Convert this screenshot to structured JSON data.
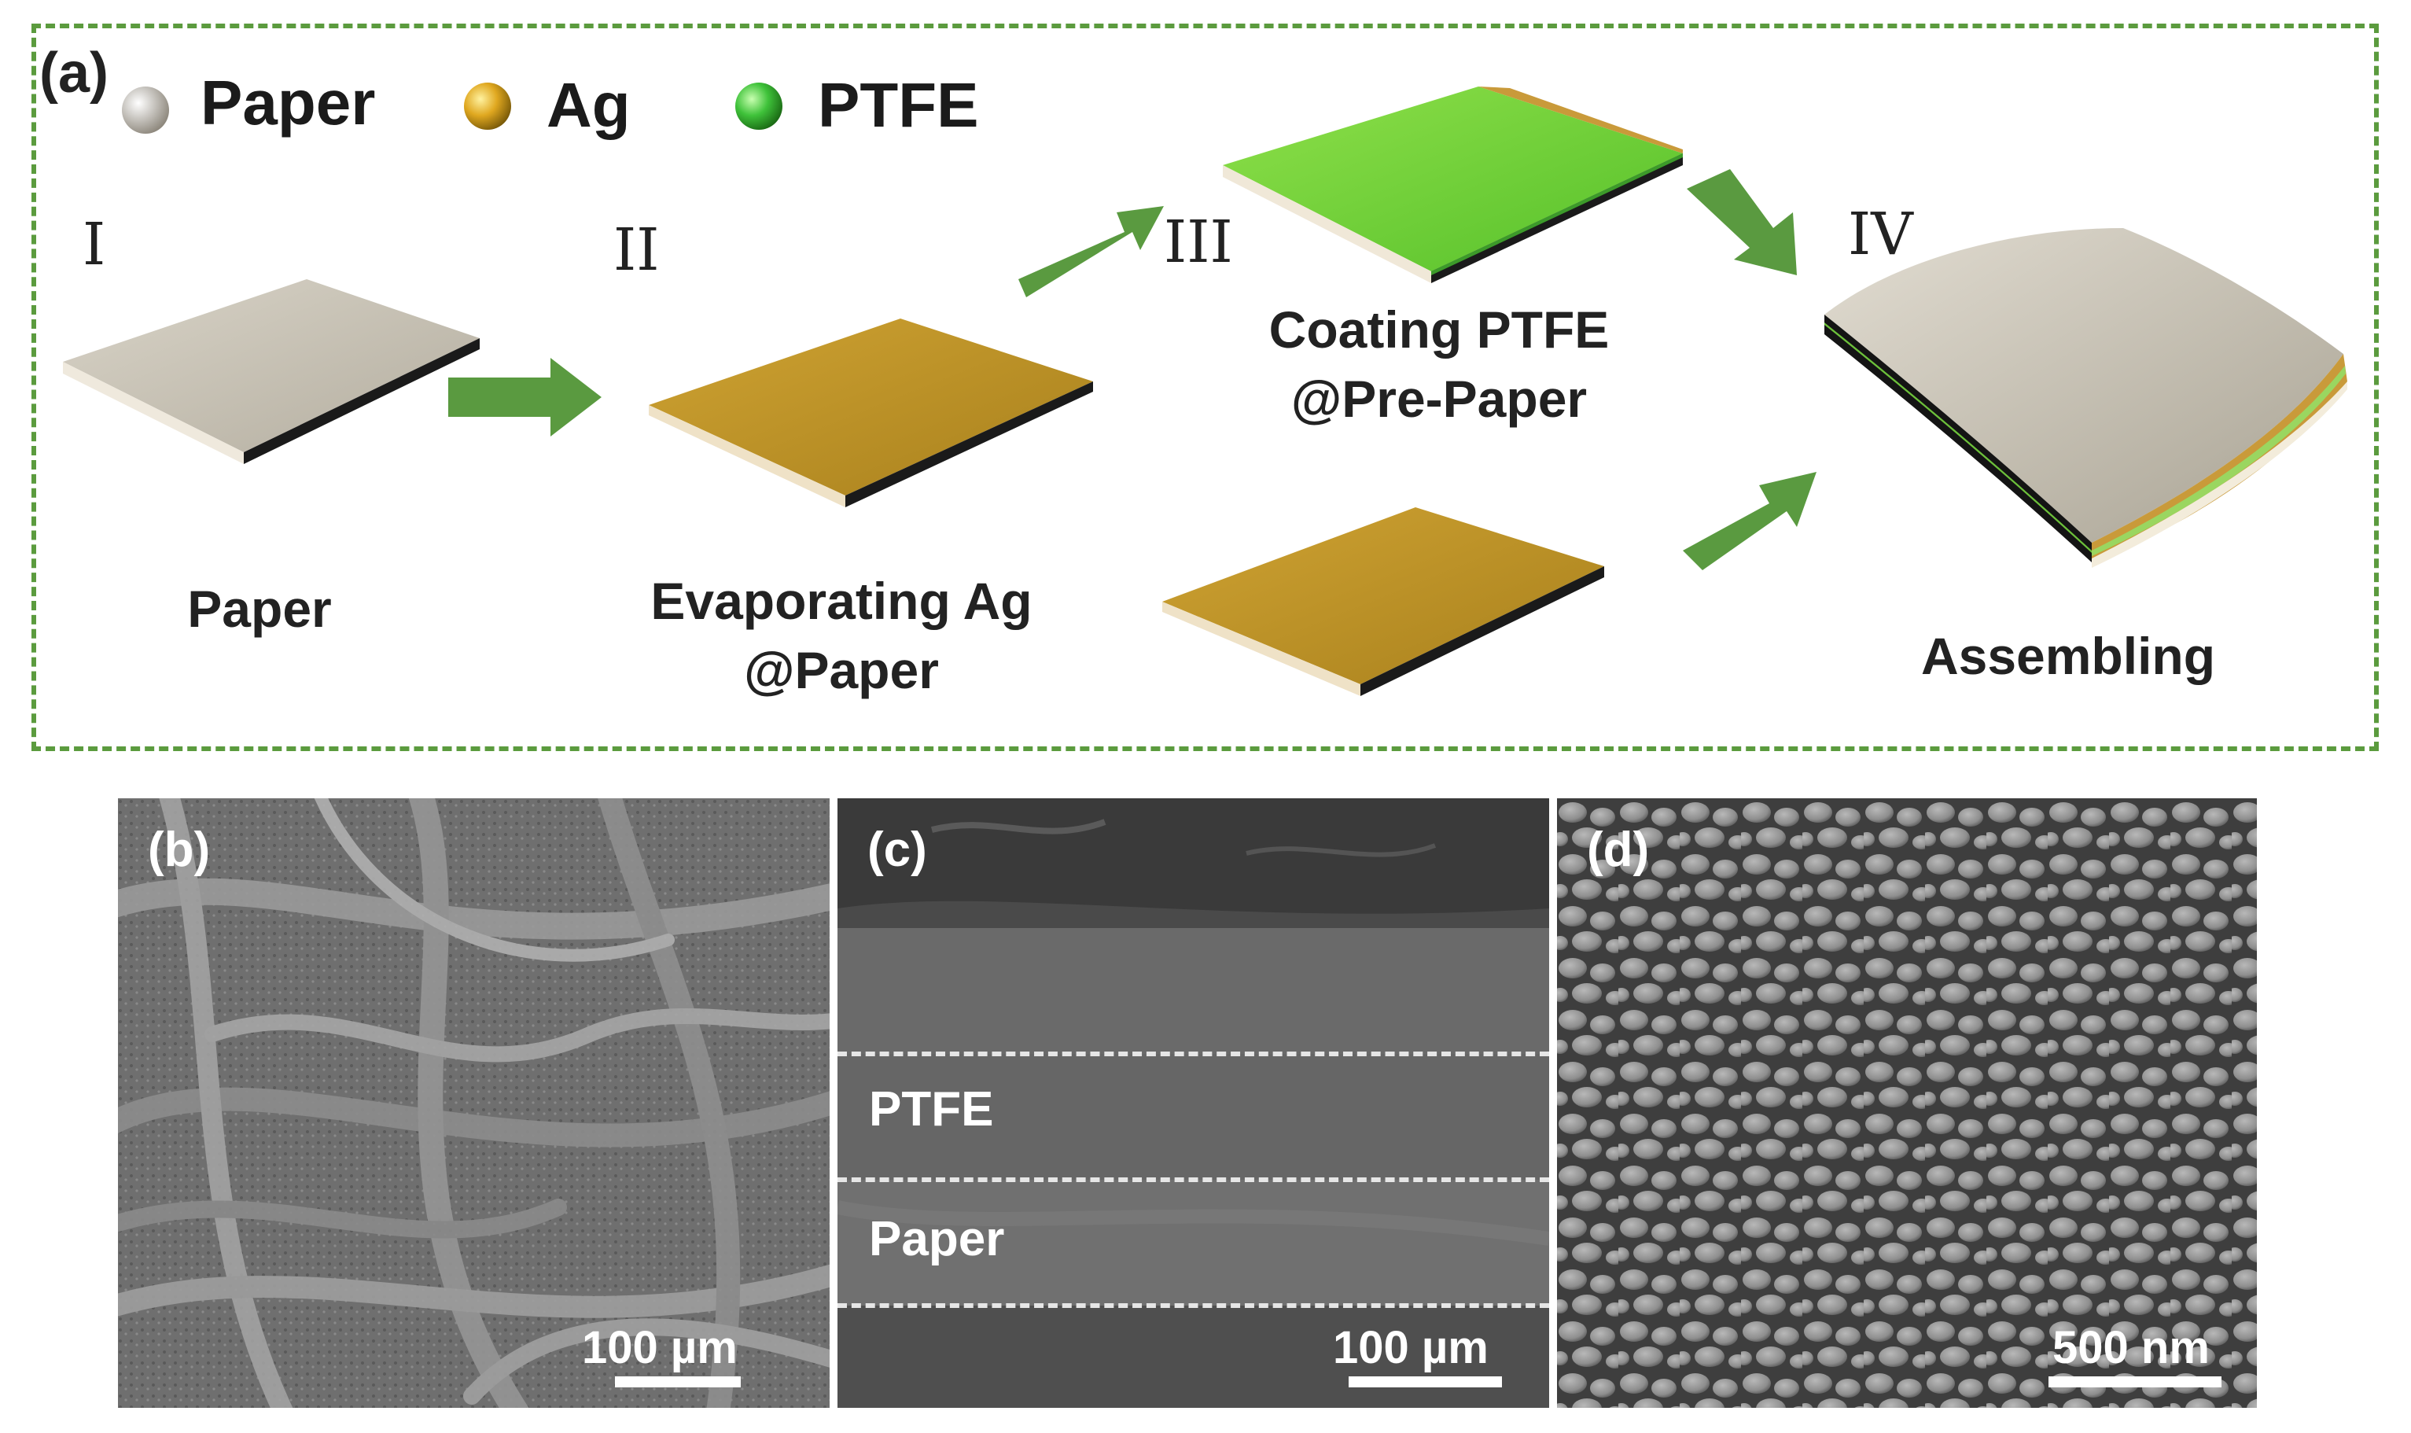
{
  "panel_a": {
    "label": "(a)",
    "legend": [
      {
        "name": "Paper",
        "color": "#e8e3d8"
      },
      {
        "name": "Ag",
        "color": "#d9a422"
      },
      {
        "name": "PTFE",
        "color": "#3fc23a"
      }
    ],
    "steps": [
      {
        "roman": "I",
        "caption_lines": [
          "Paper"
        ]
      },
      {
        "roman": "II",
        "caption_lines": [
          "Evaporating Ag",
          "@Paper"
        ]
      },
      {
        "roman": "III",
        "caption_lines": [
          "Coating PTFE",
          "@Pre-Paper"
        ]
      },
      {
        "roman": "IV",
        "caption_lines": [
          "Assembling"
        ]
      }
    ],
    "colors": {
      "arrow": "#5a9a40",
      "frame": "#5b9b3e",
      "paper": "#cfcabd",
      "ag": "#c49a24",
      "ptfe": "#66cc33"
    }
  },
  "panel_b": {
    "label": "(b)",
    "scale": "100 µm"
  },
  "panel_c": {
    "label": "(c)",
    "scale": "100 µm",
    "layers": [
      "PTFE",
      "Paper"
    ]
  },
  "panel_d": {
    "label": "(d)",
    "scale": "500 nm"
  }
}
